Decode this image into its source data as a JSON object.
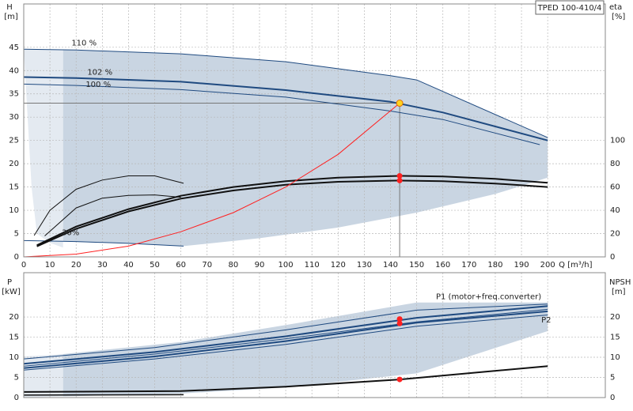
{
  "chart_data": [
    {
      "type": "line",
      "model": "TPED 100-410/4",
      "ylabel": "H",
      "yunit": "[m]",
      "y2label": "eta",
      "y2unit": "[%]",
      "xlabel": "Q [m³/h]",
      "xlim": [
        0,
        222
      ],
      "xticks": [
        0,
        10,
        20,
        30,
        40,
        50,
        60,
        70,
        80,
        90,
        100,
        110,
        120,
        130,
        140,
        150,
        160,
        170,
        180,
        190,
        200
      ],
      "ylim": [
        0,
        54.3
      ],
      "yticks": [
        0,
        5,
        10,
        15,
        20,
        25,
        30,
        35,
        40,
        45
      ],
      "y2lim": [
        0,
        217.2
      ],
      "y2ticks": [
        0,
        20,
        40,
        60,
        80,
        100
      ],
      "grid": true,
      "operating_point": {
        "x": 143.5,
        "y": 33,
        "color": "#ffd21f"
      },
      "series": [
        {
          "kind": "area",
          "color": "#e4eaf1",
          "x": [
            0,
            15,
            15,
            10,
            5,
            3,
            0
          ],
          "values": [
            44.6,
            44.4,
            2,
            3,
            5,
            15,
            44.6
          ]
        },
        {
          "kind": "area",
          "color": "#c9d5e2",
          "x": [
            15,
            60,
            100,
            140,
            150,
            200,
            200,
            180,
            150,
            120,
            90,
            61,
            40,
            15
          ],
          "values": [
            44.4,
            43.6,
            41.9,
            38.9,
            38.0,
            25.6,
            17,
            13.5,
            9.5,
            6.3,
            4.0,
            2.3,
            2.9,
            3.3
          ]
        },
        {
          "kind": "line",
          "color": "#1f4a80",
          "width": 1,
          "label": "110 %",
          "x": [
            0,
            20,
            60,
            100,
            140,
            150,
            200
          ],
          "values": [
            44.6,
            44.4,
            43.6,
            41.9,
            38.9,
            38.0,
            25.6
          ]
        },
        {
          "kind": "line",
          "color": "#1f4a80",
          "width": 2,
          "label": "102 %",
          "x": [
            0,
            20,
            60,
            100,
            140,
            160,
            200
          ],
          "values": [
            38.6,
            38.4,
            37.6,
            35.8,
            33.3,
            31,
            25
          ]
        },
        {
          "kind": "line",
          "color": "#1f4a80",
          "width": 1,
          "label": "100 %",
          "x": [
            0,
            20,
            60,
            100,
            140,
            160,
            197
          ],
          "values": [
            37.1,
            36.8,
            35.9,
            34.3,
            31.3,
            29.5,
            24.1
          ]
        },
        {
          "kind": "line",
          "color": "#1f4a80",
          "width": 1,
          "label": "30%",
          "x": [
            0,
            20,
            40,
            61
          ],
          "values": [
            3.5,
            3.3,
            2.9,
            2.3
          ]
        },
        {
          "kind": "line",
          "color": "#111111",
          "width": 2,
          "axis": "y2",
          "x": [
            5,
            20,
            40,
            60,
            80,
            100,
            120,
            143.5,
            160,
            180,
            200
          ],
          "values": [
            9,
            24,
            39,
            50,
            57,
            62,
            64.5,
            65.6,
            65,
            63,
            60
          ]
        },
        {
          "kind": "line",
          "color": "#111111",
          "width": 2,
          "axis": "y2",
          "x": [
            5,
            20,
            40,
            60,
            80,
            100,
            120,
            143.5,
            160,
            180,
            200
          ],
          "values": [
            10,
            26,
            41,
            52.5,
            60,
            65,
            68,
            69.6,
            69,
            67,
            63.6
          ]
        },
        {
          "kind": "line",
          "color": "#111111",
          "width": 1,
          "axis": "y2",
          "x": [
            4,
            10,
            20,
            30,
            40,
            50,
            61
          ],
          "values": [
            18.4,
            40,
            58,
            66,
            69.6,
            69.6,
            63.2
          ]
        },
        {
          "kind": "line",
          "color": "#111111",
          "width": 1,
          "axis": "y2",
          "x": [
            8,
            20,
            30,
            40,
            50,
            60
          ],
          "values": [
            18,
            42,
            50.4,
            52.8,
            53.2,
            51.2
          ]
        },
        {
          "kind": "line",
          "color": "#ff2020",
          "width": 1,
          "x": [
            0,
            20,
            40,
            60,
            80,
            100,
            120,
            143.5
          ],
          "values": [
            0,
            0.6,
            2.3,
            5.4,
            9.5,
            15,
            22,
            33
          ]
        },
        {
          "kind": "points",
          "color": "#ff2020",
          "axis": "y2",
          "x": [
            143.5,
            143.5
          ],
          "values": [
            69.6,
            65.6
          ]
        }
      ]
    },
    {
      "type": "line",
      "ylabel": "P",
      "yunit": "[kW]",
      "y2label": "NPSH",
      "y2unit": "[m]",
      "xlim": [
        0,
        222
      ],
      "ylim": [
        0,
        31
      ],
      "yticks": [
        0,
        5,
        10,
        15,
        20
      ],
      "y2lim": [
        0,
        31
      ],
      "y2ticks": [
        0,
        5,
        10,
        15,
        20
      ],
      "grid": true,
      "series": [
        {
          "kind": "area",
          "color": "#e4eaf1",
          "x": [
            0,
            15,
            15,
            0
          ],
          "values": [
            10.2,
            10.8,
            0.3,
            0
          ]
        },
        {
          "kind": "area",
          "color": "#c9d5e2",
          "x": [
            15,
            60,
            100,
            150,
            200,
            200,
            150,
            100,
            60,
            15
          ],
          "values": [
            10.8,
            13.8,
            18,
            23.6,
            23.6,
            16.5,
            6,
            2.5,
            1,
            0.3
          ]
        },
        {
          "kind": "line",
          "color": "#1f4a80",
          "width": 1,
          "x": [
            0,
            50,
            100,
            150,
            200
          ],
          "values": [
            9.6,
            12.4,
            16.8,
            21.7,
            23.2
          ]
        },
        {
          "kind": "line",
          "color": "#1f4a80",
          "width": 2,
          "label": "P1 (motor+freq.converter)",
          "x": [
            0,
            50,
            100,
            150,
            200
          ],
          "values": [
            8.4,
            11.3,
            15.2,
            19.8,
            22.7
          ]
        },
        {
          "kind": "line",
          "color": "#1f4a80",
          "width": 1,
          "x": [
            0,
            50,
            100,
            150,
            200
          ],
          "values": [
            7.8,
            10.8,
            14.6,
            18.8,
            21.9
          ]
        },
        {
          "kind": "line",
          "color": "#1f4a80",
          "width": 2,
          "label": "P2",
          "x": [
            0,
            50,
            100,
            150,
            200
          ],
          "values": [
            7.3,
            10.2,
            14.0,
            18.6,
            21.4
          ]
        },
        {
          "kind": "line",
          "color": "#1f4a80",
          "width": 1,
          "x": [
            0,
            50,
            100,
            150,
            200
          ],
          "values": [
            6.8,
            9.6,
            13.2,
            17.7,
            20.5
          ]
        },
        {
          "kind": "line",
          "color": "#111111",
          "width": 2,
          "axis": "y2",
          "x": [
            0,
            60,
            100,
            143.5,
            200
          ],
          "values": [
            1.4,
            1.6,
            2.7,
            4.5,
            7.8
          ]
        },
        {
          "kind": "line",
          "color": "#111111",
          "width": 1.5,
          "axis": "y2",
          "x": [
            0,
            61
          ],
          "values": [
            0.6,
            0.7
          ]
        },
        {
          "kind": "points",
          "color": "#ff2020",
          "x": [
            143.5,
            143.5
          ],
          "values": [
            19.5,
            18.4
          ]
        },
        {
          "kind": "points",
          "color": "#ff2020",
          "axis": "y2",
          "x": [
            143.5
          ],
          "values": [
            4.5
          ]
        }
      ]
    }
  ]
}
